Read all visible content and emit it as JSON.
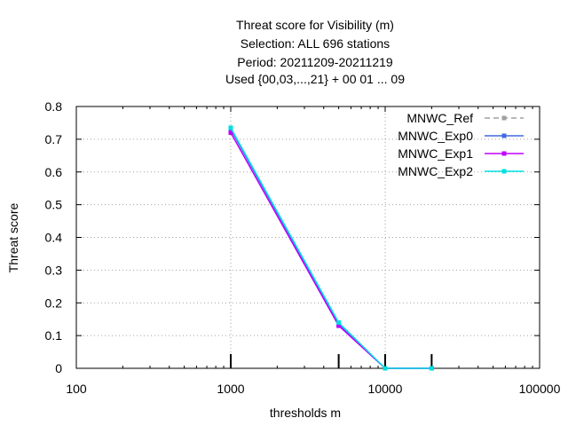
{
  "chart_data": {
    "type": "line",
    "title_lines": [
      "Threat score  for Visibility (m)",
      "Selection: ALL    696 stations",
      "Period: 20211209-20211219",
      "Used {00,03,...,21} + 00 01 ... 09"
    ],
    "xlabel": "thresholds m",
    "ylabel": "Threat score",
    "x_scale": "log",
    "xlim": [
      100,
      100000
    ],
    "ylim": [
      0,
      0.8
    ],
    "x_ticks": [
      100,
      1000,
      10000,
      100000
    ],
    "x_tick_labels": [
      "100",
      "1000",
      "10000",
      "100000"
    ],
    "y_ticks": [
      0,
      0.1,
      0.2,
      0.3,
      0.4,
      0.5,
      0.6,
      0.7,
      0.8
    ],
    "y_tick_labels": [
      "0",
      "0.1",
      "0.2",
      "0.3",
      "0.4",
      "0.5",
      "0.6",
      "0.7",
      "0.8"
    ],
    "threshold_markers": [
      1000,
      5000,
      10000,
      20000
    ],
    "grid": true,
    "legend_position": "top-right",
    "x": [
      1000,
      5000,
      10000,
      20000
    ],
    "series": [
      {
        "name": "MNWC_Ref",
        "color": "#a0a0a0",
        "dashed": true,
        "values": [
          null,
          null,
          null,
          null
        ]
      },
      {
        "name": "MNWC_Exp0",
        "color": "#4169e1",
        "dashed": false,
        "values": [
          0.73,
          0.135,
          0.0,
          0.0
        ]
      },
      {
        "name": "MNWC_Exp1",
        "color": "#c000ff",
        "dashed": false,
        "values": [
          0.72,
          0.13,
          0.0,
          0.0
        ]
      },
      {
        "name": "MNWC_Exp2",
        "color": "#00e0e0",
        "dashed": false,
        "values": [
          0.735,
          0.14,
          0.0,
          0.0
        ]
      }
    ]
  }
}
